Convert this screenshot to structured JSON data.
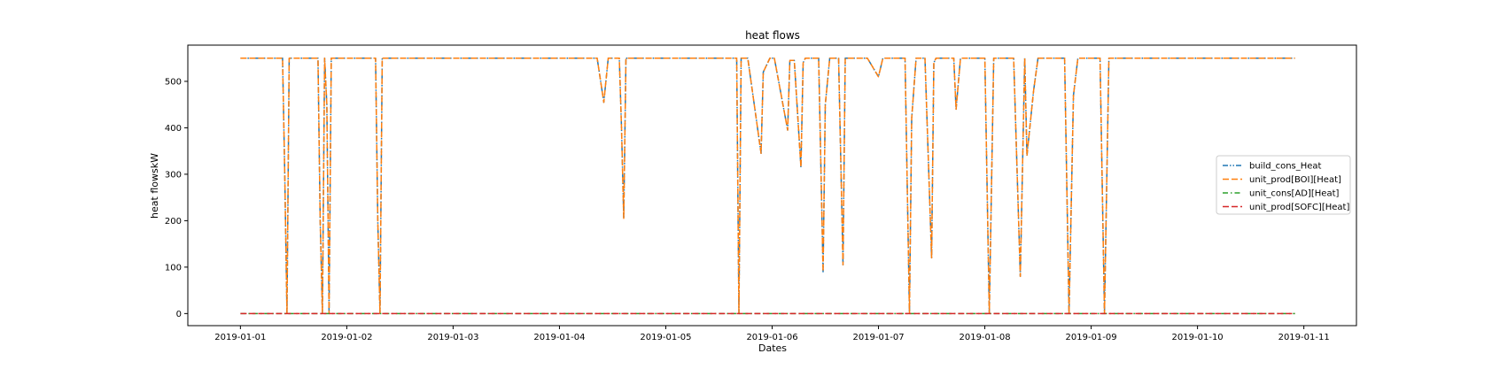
{
  "chart_data": {
    "type": "line",
    "title": "heat flows",
    "xlabel": "Dates",
    "ylabel": "heat flowskW",
    "xlim": [
      "2019-01-01T00:00",
      "2019-01-11T00:00"
    ],
    "ylim": [
      -26,
      578
    ],
    "x_ticks": [
      "2019-01-01",
      "2019-01-02",
      "2019-01-03",
      "2019-01-04",
      "2019-01-05",
      "2019-01-06",
      "2019-01-07",
      "2019-01-08",
      "2019-01-09",
      "2019-01-10",
      "2019-01-11"
    ],
    "y_ticks": [
      0,
      100,
      200,
      300,
      400,
      500
    ],
    "grid": false,
    "legend_position": "center-right",
    "series": [
      {
        "name": "build_cons_Heat",
        "color": "#1f77b4",
        "linestyle": "dashdotdot",
        "points": [
          [
            "2019-01-01T00:00",
            550
          ],
          [
            "2019-01-01T09:30",
            550
          ],
          [
            "2019-01-01T10:00",
            300
          ],
          [
            "2019-01-01T10:30",
            0
          ],
          [
            "2019-01-01T11:00",
            550
          ],
          [
            "2019-01-01T17:30",
            550
          ],
          [
            "2019-01-01T18:00",
            200
          ],
          [
            "2019-01-01T18:30",
            0
          ],
          [
            "2019-01-01T19:00",
            550
          ],
          [
            "2019-01-01T19:30",
            450
          ],
          [
            "2019-01-01T20:00",
            0
          ],
          [
            "2019-01-01T20:30",
            550
          ],
          [
            "2019-01-02T06:30",
            550
          ],
          [
            "2019-01-02T07:00",
            200
          ],
          [
            "2019-01-02T07:30",
            0
          ],
          [
            "2019-01-02T08:00",
            550
          ],
          [
            "2019-01-04T08:30",
            550
          ],
          [
            "2019-01-04T10:00",
            455
          ],
          [
            "2019-01-04T11:00",
            550
          ],
          [
            "2019-01-04T13:30",
            550
          ],
          [
            "2019-01-04T14:00",
            400
          ],
          [
            "2019-01-04T14:30",
            205
          ],
          [
            "2019-01-04T15:00",
            550
          ],
          [
            "2019-01-05T16:00",
            550
          ],
          [
            "2019-01-05T16:30",
            0
          ],
          [
            "2019-01-05T17:00",
            550
          ],
          [
            "2019-01-05T18:30",
            550
          ],
          [
            "2019-01-05T21:30",
            345
          ],
          [
            "2019-01-05T22:00",
            520
          ],
          [
            "2019-01-05T23:30",
            550
          ],
          [
            "2019-01-06T00:30",
            550
          ],
          [
            "2019-01-06T03:30",
            395
          ],
          [
            "2019-01-06T04:00",
            545
          ],
          [
            "2019-01-06T05:00",
            545
          ],
          [
            "2019-01-06T06:30",
            315
          ],
          [
            "2019-01-06T07:00",
            540
          ],
          [
            "2019-01-06T07:30",
            550
          ],
          [
            "2019-01-06T10:30",
            550
          ],
          [
            "2019-01-06T11:30",
            90
          ],
          [
            "2019-01-06T12:00",
            450
          ],
          [
            "2019-01-06T13:00",
            550
          ],
          [
            "2019-01-06T15:00",
            550
          ],
          [
            "2019-01-06T16:00",
            105
          ],
          [
            "2019-01-06T16:30",
            550
          ],
          [
            "2019-01-06T21:30",
            550
          ],
          [
            "2019-01-07T00:00",
            510
          ],
          [
            "2019-01-07T01:00",
            550
          ],
          [
            "2019-01-07T06:00",
            550
          ],
          [
            "2019-01-07T07:00",
            0
          ],
          [
            "2019-01-07T07:30",
            420
          ],
          [
            "2019-01-07T08:30",
            550
          ],
          [
            "2019-01-07T10:30",
            550
          ],
          [
            "2019-01-07T12:00",
            120
          ],
          [
            "2019-01-07T12:30",
            540
          ],
          [
            "2019-01-07T13:00",
            550
          ],
          [
            "2019-01-07T17:00",
            550
          ],
          [
            "2019-01-07T17:30",
            440
          ],
          [
            "2019-01-07T18:30",
            550
          ],
          [
            "2019-01-08T00:00",
            550
          ],
          [
            "2019-01-08T01:00",
            0
          ],
          [
            "2019-01-08T02:00",
            550
          ],
          [
            "2019-01-08T06:30",
            550
          ],
          [
            "2019-01-08T08:00",
            80
          ],
          [
            "2019-01-08T09:00",
            550
          ],
          [
            "2019-01-08T09:30",
            340
          ],
          [
            "2019-01-08T11:00",
            480
          ],
          [
            "2019-01-08T12:00",
            550
          ],
          [
            "2019-01-08T18:00",
            550
          ],
          [
            "2019-01-08T19:00",
            0
          ],
          [
            "2019-01-08T20:00",
            470
          ],
          [
            "2019-01-08T21:00",
            550
          ],
          [
            "2019-01-09T02:00",
            550
          ],
          [
            "2019-01-09T03:00",
            0
          ],
          [
            "2019-01-09T04:00",
            550
          ],
          [
            "2019-01-10T22:00",
            550
          ]
        ]
      },
      {
        "name": "unit_prod[BOI][Heat]",
        "color": "#ff7f0e",
        "linestyle": "dashed",
        "points": [
          [
            "2019-01-01T00:00",
            550
          ],
          [
            "2019-01-01T09:30",
            550
          ],
          [
            "2019-01-01T10:00",
            300
          ],
          [
            "2019-01-01T10:30",
            0
          ],
          [
            "2019-01-01T11:00",
            550
          ],
          [
            "2019-01-01T17:30",
            550
          ],
          [
            "2019-01-01T18:00",
            200
          ],
          [
            "2019-01-01T18:30",
            0
          ],
          [
            "2019-01-01T19:00",
            550
          ],
          [
            "2019-01-01T19:30",
            450
          ],
          [
            "2019-01-01T20:00",
            0
          ],
          [
            "2019-01-01T20:30",
            550
          ],
          [
            "2019-01-02T06:30",
            550
          ],
          [
            "2019-01-02T07:00",
            200
          ],
          [
            "2019-01-02T07:30",
            0
          ],
          [
            "2019-01-02T08:00",
            550
          ],
          [
            "2019-01-04T08:30",
            550
          ],
          [
            "2019-01-04T10:00",
            455
          ],
          [
            "2019-01-04T11:00",
            550
          ],
          [
            "2019-01-04T13:30",
            550
          ],
          [
            "2019-01-04T14:00",
            400
          ],
          [
            "2019-01-04T14:30",
            205
          ],
          [
            "2019-01-04T15:00",
            550
          ],
          [
            "2019-01-05T16:00",
            550
          ],
          [
            "2019-01-05T16:30",
            0
          ],
          [
            "2019-01-05T17:00",
            550
          ],
          [
            "2019-01-05T18:30",
            550
          ],
          [
            "2019-01-05T21:30",
            345
          ],
          [
            "2019-01-05T22:00",
            520
          ],
          [
            "2019-01-05T23:30",
            550
          ],
          [
            "2019-01-06T00:30",
            550
          ],
          [
            "2019-01-06T03:30",
            395
          ],
          [
            "2019-01-06T04:00",
            545
          ],
          [
            "2019-01-06T05:00",
            545
          ],
          [
            "2019-01-06T06:30",
            315
          ],
          [
            "2019-01-06T07:00",
            540
          ],
          [
            "2019-01-06T07:30",
            550
          ],
          [
            "2019-01-06T10:30",
            550
          ],
          [
            "2019-01-06T11:30",
            90
          ],
          [
            "2019-01-06T12:00",
            450
          ],
          [
            "2019-01-06T13:00",
            550
          ],
          [
            "2019-01-06T15:00",
            550
          ],
          [
            "2019-01-06T16:00",
            105
          ],
          [
            "2019-01-06T16:30",
            550
          ],
          [
            "2019-01-06T21:30",
            550
          ],
          [
            "2019-01-07T00:00",
            510
          ],
          [
            "2019-01-07T01:00",
            550
          ],
          [
            "2019-01-07T06:00",
            550
          ],
          [
            "2019-01-07T07:00",
            0
          ],
          [
            "2019-01-07T07:30",
            420
          ],
          [
            "2019-01-07T08:30",
            550
          ],
          [
            "2019-01-07T10:30",
            550
          ],
          [
            "2019-01-07T12:00",
            120
          ],
          [
            "2019-01-07T12:30",
            540
          ],
          [
            "2019-01-07T13:00",
            550
          ],
          [
            "2019-01-07T17:00",
            550
          ],
          [
            "2019-01-07T17:30",
            440
          ],
          [
            "2019-01-07T18:30",
            550
          ],
          [
            "2019-01-08T00:00",
            550
          ],
          [
            "2019-01-08T01:00",
            0
          ],
          [
            "2019-01-08T02:00",
            550
          ],
          [
            "2019-01-08T06:30",
            550
          ],
          [
            "2019-01-08T08:00",
            80
          ],
          [
            "2019-01-08T09:00",
            550
          ],
          [
            "2019-01-08T09:30",
            340
          ],
          [
            "2019-01-08T11:00",
            480
          ],
          [
            "2019-01-08T12:00",
            550
          ],
          [
            "2019-01-08T18:00",
            550
          ],
          [
            "2019-01-08T19:00",
            0
          ],
          [
            "2019-01-08T20:00",
            470
          ],
          [
            "2019-01-08T21:00",
            550
          ],
          [
            "2019-01-09T02:00",
            550
          ],
          [
            "2019-01-09T03:00",
            0
          ],
          [
            "2019-01-09T04:00",
            550
          ],
          [
            "2019-01-10T22:00",
            550
          ]
        ]
      },
      {
        "name": "unit_cons[AD][Heat]",
        "color": "#2ca02c",
        "linestyle": "dashdot",
        "points": [
          [
            "2019-01-01T00:00",
            0
          ],
          [
            "2019-01-10T22:00",
            0
          ]
        ]
      },
      {
        "name": "unit_prod[SOFC][Heat]",
        "color": "#d62728",
        "linestyle": "dashed",
        "points": [
          [
            "2019-01-01T00:00",
            0
          ],
          [
            "2019-01-10T22:00",
            0
          ]
        ]
      }
    ]
  }
}
